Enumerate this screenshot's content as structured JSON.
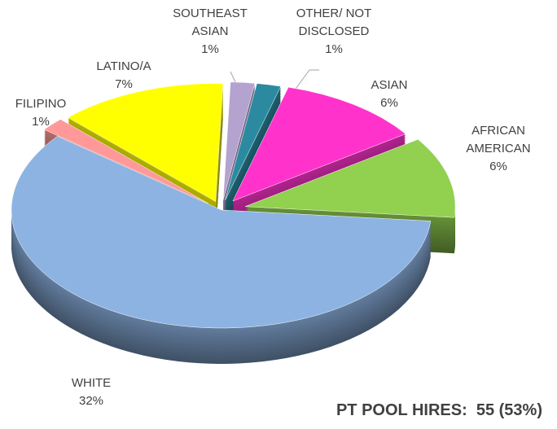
{
  "chart_data": {
    "type": "pie",
    "title": "PT POOL HIRES:  55 (53%)",
    "categories": [
      "SOUTHEAST ASIAN",
      "OTHER/ NOT DISCLOSED",
      "ASIAN",
      "AFRICAN AMERICAN",
      "WHITE",
      "FILIPINO",
      "LATINO/A"
    ],
    "values": [
      1,
      1,
      6,
      6,
      32,
      1,
      7
    ],
    "value_labels": [
      "1%",
      "1%",
      "6%",
      "6%",
      "32%",
      "1%",
      "7%"
    ],
    "colors": [
      "#b4a2cf",
      "#2b8aa0",
      "#ff33cc",
      "#92d050",
      "#8db3e2",
      "#ff9999",
      "#ffff00"
    ]
  }
}
